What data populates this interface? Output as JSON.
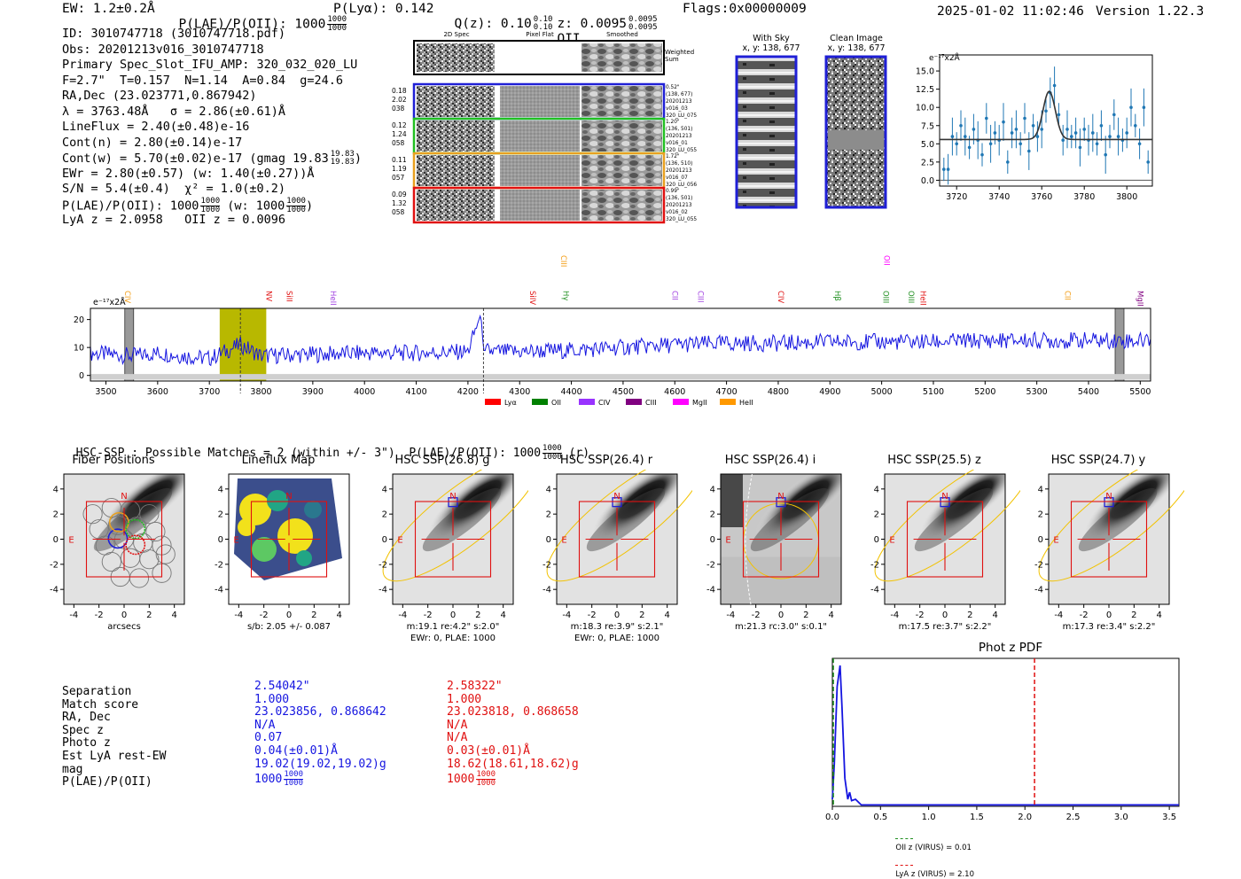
{
  "header": {
    "ew": "EW: 1.2±0.2Å",
    "plae_label": "P(LAE)/P(OII): 1000",
    "plae_hi": "1000",
    "plae_lo": "1000",
    "plya": "P(Lyα): 0.142",
    "qz_label": "Q(z): 0.10",
    "qz_hi": "0.10",
    "qz_lo": "0.10",
    "z_label": "z: 0.0095",
    "z_hi": "0.0095",
    "z_lo": "0.0095",
    "z_line": "OII",
    "flags": "Flags:0x00000009",
    "datetime": "2025-01-02 11:02:46",
    "version": "Version 1.22.3"
  },
  "info": {
    "id": "ID: 3010747718 (3010747718.pdf)",
    "obs": "Obs: 20201213v016_3010747718",
    "primary": "Primary Spec_Slot_IFU_AMP: 320_032_020_LU",
    "fiber": "F=2.7\"  T=0.157  N=1.14  A=0.84  g=24.6",
    "radec": "RA,Dec (23.023771,0.867942)",
    "lambda": "λ = 3763.48Å   σ = 2.86(±0.61)Å",
    "lineflux": "LineFlux = 2.40(±0.48)e-16",
    "contn": "Cont(n) = 2.80(±0.14)e-17",
    "contw": "Cont(w) = 5.70(±0.02)e-17 (gmag 19.83",
    "contw_hi": "19.83",
    "contw_lo": "19.83",
    "contw_end": ")",
    "ewr": "EWr = 2.80(±0.57) (w: 1.40(±0.27))Å",
    "sn": "S/N = 5.4(±0.4)  χ² = 1.0(±0.2)",
    "plae": "P(LAE)/P(OII): 1000",
    "plae_hi": "1000",
    "plae_lo": "1000",
    "plae_w": "(w: 1000",
    "plae_w_hi": "1000",
    "plae_w_lo": "1000",
    "plae_w_end": ")",
    "lyaz": "LyA z = 2.0958   OII z = 0.0096"
  },
  "fibers": {
    "col_headers": [
      "2D Spec",
      "Pixel Flat",
      "Smoothed"
    ],
    "weighted_sum": "Weighted Sum",
    "rows": [
      {
        "left": [
          "0.18",
          "2.02",
          "038"
        ],
        "right": [
          "0.52\"",
          "(138, 677)",
          "20201213",
          "v016_03",
          "320_LU_075"
        ],
        "color": "#1f1fd6"
      },
      {
        "left": [
          "0.12",
          "1.24",
          "058"
        ],
        "right": [
          "1.20\"",
          "(136, 501)",
          "20201213",
          "v016_01",
          "320_LU_055"
        ],
        "color": "#22c022"
      },
      {
        "left": [
          "0.11",
          "1.19",
          "057"
        ],
        "right": [
          "1.72\"",
          "(136, 510)",
          "20201213",
          "v016_07",
          "320_LU_056"
        ],
        "color": "#e8a020"
      },
      {
        "left": [
          "0.09",
          "1.32",
          "058"
        ],
        "right": [
          "0.99\"",
          "(136, 501)",
          "20201213",
          "v016_02",
          "320_LU_055"
        ],
        "color": "#e01010"
      }
    ]
  },
  "ccd": {
    "with_sky": "With Sky",
    "with_sky_xy": "x, y: 138, 677",
    "clean": "Clean Image",
    "clean_xy": "x, y: 138, 677"
  },
  "zoom_chart": {
    "ylabel": "e⁻¹⁷x2Å",
    "x_ticks": [
      "3720",
      "3740",
      "3760",
      "3780",
      "3800"
    ],
    "y_ticks": [
      "0.0",
      "2.5",
      "5.0",
      "7.5",
      "10.0",
      "12.5",
      "15.0"
    ]
  },
  "full_spectrum": {
    "ylabel": "e⁻¹⁷x2Å",
    "y_ticks": [
      "0",
      "10",
      "20"
    ],
    "x_ticks": [
      "3500",
      "3600",
      "3700",
      "3800",
      "3900",
      "4000",
      "4100",
      "4200",
      "4300",
      "4400",
      "4500",
      "4600",
      "4700",
      "4800",
      "4900",
      "5000",
      "5100",
      "5200",
      "5300",
      "5400",
      "5500"
    ],
    "line_labels": [
      {
        "text": "CIV",
        "x": 3542,
        "color": "#f39c12",
        "row": 1
      },
      {
        "text": "NV",
        "x": 3815,
        "color": "#e01010",
        "row": 1
      },
      {
        "text": "SiII",
        "x": 3855,
        "color": "#e01010",
        "row": 1
      },
      {
        "text": "HeII",
        "x": 3940,
        "color": "#a040e0",
        "row": 1
      },
      {
        "text": "SiIV",
        "x": 4325,
        "color": "#e01010",
        "row": 1
      },
      {
        "text": "CIII",
        "x": 4385,
        "color": "#f39c12",
        "row": 0
      },
      {
        "text": "Hγ",
        "x": 4390,
        "color": "#1f8f1f",
        "row": 1
      },
      {
        "text": "CII",
        "x": 4600,
        "color": "#a040e0",
        "row": 1
      },
      {
        "text": "CIII",
        "x": 4650,
        "color": "#a040e0",
        "row": 1
      },
      {
        "text": "CIV",
        "x": 4805,
        "color": "#e01010",
        "row": 1
      },
      {
        "text": "Hβ",
        "x": 4915,
        "color": "#1f8f1f",
        "row": 1
      },
      {
        "text": "OII",
        "x": 5010,
        "color": "#ff00ff",
        "row": 0
      },
      {
        "text": "OIII",
        "x": 5008,
        "color": "#1f8f1f",
        "row": 1
      },
      {
        "text": "OIII",
        "x": 5057,
        "color": "#1f8f1f",
        "row": 1
      },
      {
        "text": "HeII",
        "x": 5080,
        "color": "#e01010",
        "row": 1
      },
      {
        "text": "CII",
        "x": 5360,
        "color": "#f39c12",
        "row": 1
      },
      {
        "text": "MgII",
        "x": 5500,
        "color": "#800080",
        "row": 1
      }
    ],
    "legend": [
      {
        "label": "Lyα",
        "color": "#ff0000"
      },
      {
        "label": "OII",
        "color": "#008000"
      },
      {
        "label": "CIV",
        "color": "#9933ff"
      },
      {
        "label": "CIII",
        "color": "#800080"
      },
      {
        "label": "MgII",
        "color": "#ff00ff"
      },
      {
        "label": "HeII",
        "color": "#ff9900"
      }
    ]
  },
  "hsc": {
    "title": "HSC-SSP : Possible Matches = 2 (within +/- 3\")  P(LAE)/P(OII): 1000",
    "title_hi": "1000",
    "title_lo": "1000",
    "title_end": "(r)",
    "panels": [
      {
        "title": "Fiber Positions",
        "cap1": "arcsecs",
        "cap2": ""
      },
      {
        "title": "Lineflux Map",
        "cap1": "s/b: 2.05 +/- 0.087",
        "cap2": ""
      },
      {
        "title": "HSC SSP(26.8) g",
        "cap1": "m:19.1  re:4.2\"  s:2.0\"",
        "cap2": "EWr: 0, PLAE: 1000"
      },
      {
        "title": "HSC SSP(26.4) r",
        "cap1": "m:18.3  re:3.9\"  s:2.1\"",
        "cap2": "EWr: 0, PLAE: 1000"
      },
      {
        "title": "HSC SSP(26.4) i",
        "cap1": "m:21.3 rc:3.0\"  s:0.1\"",
        "cap2": ""
      },
      {
        "title": "HSC SSP(25.5) z",
        "cap1": "m:17.5  re:3.7\"  s:2.2\"",
        "cap2": ""
      },
      {
        "title": "HSC SSP(24.7) y",
        "cap1": "m:17.3  re:3.4\"  s:2.2\"",
        "cap2": ""
      }
    ],
    "axis_ticks": [
      "-4",
      "-2",
      "0",
      "2",
      "4"
    ],
    "compass_n": "N",
    "compass_e": "E"
  },
  "matches": {
    "labels": [
      "Separation",
      "Match score",
      "RA, Dec",
      "Spec z",
      "Photo z",
      "Est LyA rest-EW",
      "mag",
      "P(LAE)/P(OII)"
    ],
    "match1": [
      "2.54042\"",
      "1.000",
      "23.023856, 0.868642",
      "N/A",
      "0.07",
      "0.04(±0.01)Å",
      "19.02(19.02,19.02)g",
      "1000"
    ],
    "match2": [
      "2.58322\"",
      "1.000",
      "23.023818, 0.868658",
      "N/A",
      "N/A",
      "0.03(±0.01)Å",
      "18.62(18.61,18.62)g",
      "1000"
    ],
    "plae_frac_hi": "1000",
    "plae_frac_lo": "1000",
    "match1_color": "#1515e0",
    "match2_color": "#e01010"
  },
  "photz": {
    "title": "Phot z PDF",
    "x_ticks": [
      "0.0",
      "0.5",
      "1.0",
      "1.5",
      "2.0",
      "2.5",
      "3.0",
      "3.5"
    ],
    "legend_oii": "OII z (VIRUS) = 0.01",
    "legend_lya": "LyA z (VIRUS) = 2.10",
    "oii_z": 0.01,
    "lya_z": 2.1
  },
  "chart_data": [
    {
      "type": "line",
      "title": "",
      "xlabel": "",
      "ylabel": "e⁻¹⁷x2Å",
      "xlim": [
        3712,
        3812
      ],
      "ylim": [
        -0.8,
        17.2
      ],
      "series": [
        {
          "name": "data",
          "x": [
            3714,
            3716,
            3718,
            3720,
            3722,
            3724,
            3726,
            3728,
            3730,
            3732,
            3734,
            3736,
            3738,
            3740,
            3742,
            3744,
            3746,
            3748,
            3750,
            3752,
            3754,
            3756,
            3758,
            3760,
            3762,
            3764,
            3766,
            3768,
            3770,
            3772,
            3774,
            3776,
            3778,
            3780,
            3782,
            3784,
            3786,
            3788,
            3790,
            3792,
            3794,
            3796,
            3798,
            3800,
            3802,
            3804,
            3806,
            3808,
            3810
          ],
          "y": [
            1.5,
            1.5,
            6.0,
            5.0,
            7.5,
            6.0,
            4.5,
            7.0,
            5.5,
            3.5,
            8.5,
            5.0,
            6.5,
            5.5,
            8.0,
            2.5,
            6.5,
            7.0,
            5.0,
            8.5,
            4.0,
            7.5,
            6.0,
            7.0,
            9.5,
            12.0,
            13.0,
            9.0,
            5.5,
            7.0,
            6.0,
            6.5,
            4.5,
            7.0,
            5.5,
            6.5,
            5.0,
            7.5,
            3.5,
            6.0,
            9.0,
            6.0,
            5.5,
            6.5,
            10.0,
            7.5,
            5.0,
            10.0,
            2.5
          ]
        },
        {
          "name": "gaussian fit",
          "x": [
            3712,
            3812
          ],
          "y": [
            5.6,
            5.6
          ]
        }
      ]
    },
    {
      "type": "line",
      "title": "",
      "xlabel": "",
      "ylabel": "e⁻¹⁷x2Å",
      "xlim": [
        3470,
        5520
      ],
      "ylim": [
        -2,
        24
      ],
      "series": [
        {
          "name": "spectrum",
          "x": [
            3470,
            3550,
            3600,
            3650,
            3700,
            3760,
            3800,
            3900,
            4000,
            4100,
            4200,
            4225,
            4230,
            4250,
            4300,
            4400,
            4500,
            4600,
            4700,
            4800,
            4900,
            5000,
            5100,
            5200,
            5300,
            5400,
            5500,
            5520
          ],
          "y": [
            8,
            7,
            8,
            7,
            6,
            11,
            7,
            7.5,
            8,
            8,
            8.5,
            22,
            9,
            8.5,
            8.5,
            9,
            10,
            11,
            11.5,
            11.5,
            12,
            12,
            12,
            12.5,
            12.5,
            12.5,
            12.5,
            13
          ]
        }
      ],
      "highlight_band": [
        3720,
        3810
      ],
      "marked_lines": [
        3545,
        3760,
        4230,
        5460
      ]
    },
    {
      "type": "line",
      "title": "Phot z PDF",
      "xlabel": "",
      "ylabel": "",
      "xlim": [
        0,
        3.6
      ],
      "ylim": [
        0,
        1.05
      ],
      "series": [
        {
          "name": "pdf",
          "x": [
            0,
            0.02,
            0.05,
            0.08,
            0.1,
            0.13,
            0.16,
            0.18,
            0.2,
            0.24,
            0.3,
            0.4,
            3.6
          ],
          "y": [
            0.05,
            0.3,
            0.85,
            1.0,
            0.7,
            0.2,
            0.05,
            0.1,
            0.04,
            0.05,
            0.01,
            0.01,
            0.01
          ]
        }
      ]
    }
  ]
}
